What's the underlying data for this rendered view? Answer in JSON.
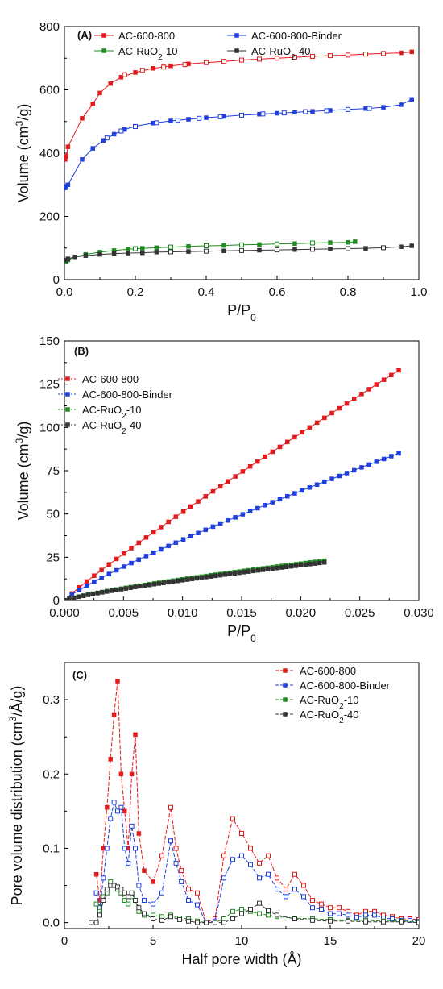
{
  "chart_data": [
    {
      "panel": "(A)",
      "type": "line",
      "xlabel": "P/P",
      "xlabel_sub": "0",
      "ylabel": "Volume (cm",
      "ylabel_sup": "3",
      "ylabel_end": "/g)",
      "xlim": [
        0,
        1.0
      ],
      "ylim": [
        0,
        800
      ],
      "xticks": [
        "0.0",
        "0.2",
        "0.4",
        "0.6",
        "0.8",
        "1.0"
      ],
      "yticks": [
        "0",
        "200",
        "400",
        "600",
        "800"
      ],
      "legend_placement": "top",
      "series": [
        {
          "name": "AC-600-800",
          "name_main": "AC-600-800",
          "name_sub": "",
          "name_end": "",
          "color": "#e31a1c",
          "x": [
            0.002,
            0.005,
            0.01,
            0.05,
            0.08,
            0.1,
            0.13,
            0.16,
            0.2,
            0.25,
            0.3,
            0.35,
            0.4,
            0.45,
            0.5,
            0.55,
            0.6,
            0.65,
            0.7,
            0.75,
            0.8,
            0.85,
            0.9,
            0.95,
            0.98
          ],
          "y": [
            380,
            390,
            420,
            510,
            555,
            590,
            620,
            640,
            655,
            668,
            676,
            682,
            686,
            690,
            694,
            697,
            700,
            703,
            706,
            708,
            710,
            713,
            715,
            717,
            720
          ],
          "x_des": [
            0.17,
            0.22,
            0.28,
            0.34,
            0.4,
            0.45,
            0.5,
            0.55,
            0.6,
            0.65,
            0.7,
            0.75,
            0.8,
            0.85,
            0.9
          ],
          "y_des": [
            648,
            662,
            672,
            680,
            686,
            690,
            694,
            697,
            700,
            703,
            706,
            708,
            710,
            713,
            715
          ]
        },
        {
          "name": "AC-600-800-Binder",
          "name_main": "AC-600-800-Binder",
          "name_sub": "",
          "name_end": "",
          "color": "#1f3fdc",
          "x": [
            0.002,
            0.005,
            0.01,
            0.05,
            0.08,
            0.11,
            0.14,
            0.17,
            0.2,
            0.25,
            0.3,
            0.35,
            0.4,
            0.45,
            0.5,
            0.55,
            0.6,
            0.65,
            0.7,
            0.75,
            0.8,
            0.85,
            0.9,
            0.95,
            0.98
          ],
          "y": [
            290,
            295,
            300,
            380,
            415,
            440,
            460,
            475,
            485,
            495,
            502,
            507,
            512,
            516,
            520,
            523,
            526,
            529,
            532,
            535,
            538,
            541,
            545,
            553,
            570
          ],
          "x_des": [
            0.12,
            0.16,
            0.2,
            0.26,
            0.32,
            0.38,
            0.44,
            0.5,
            0.56,
            0.62,
            0.68,
            0.74,
            0.8,
            0.86
          ],
          "y_des": [
            448,
            470,
            484,
            496,
            504,
            510,
            515,
            520,
            524,
            527,
            531,
            534,
            538,
            541
          ]
        },
        {
          "name": "AC-RuO2-10",
          "name_main": "AC-RuO",
          "name_sub": "2",
          "name_end": "-10",
          "color": "#1e8c1e",
          "x": [
            0.005,
            0.01,
            0.03,
            0.06,
            0.1,
            0.14,
            0.18,
            0.22,
            0.26,
            0.3,
            0.35,
            0.4,
            0.45,
            0.5,
            0.55,
            0.6,
            0.65,
            0.7,
            0.75,
            0.8,
            0.82
          ],
          "y": [
            58,
            62,
            72,
            80,
            87,
            92,
            96,
            99,
            101,
            103,
            105,
            107,
            108,
            110,
            111,
            113,
            114,
            116,
            117,
            118,
            120
          ],
          "x_des": [
            0.2,
            0.3,
            0.4,
            0.5,
            0.6,
            0.7
          ],
          "y_des": [
            98,
            103,
            107,
            110,
            113,
            116
          ]
        },
        {
          "name": "AC-RuO2-40",
          "name_main": "AC-RuO",
          "name_sub": "2",
          "name_end": "-40",
          "color": "#333333",
          "x": [
            0.005,
            0.01,
            0.03,
            0.06,
            0.1,
            0.14,
            0.18,
            0.22,
            0.26,
            0.3,
            0.35,
            0.4,
            0.45,
            0.5,
            0.55,
            0.6,
            0.65,
            0.7,
            0.75,
            0.8,
            0.85,
            0.9,
            0.95,
            0.98
          ],
          "y": [
            62,
            66,
            72,
            76,
            80,
            82,
            84,
            85,
            87,
            88,
            89,
            90,
            91,
            92,
            93,
            94,
            95,
            96,
            97,
            98,
            99,
            101,
            104,
            107
          ],
          "x_des": [
            0.3,
            0.4,
            0.5,
            0.6,
            0.7,
            0.8,
            0.9
          ],
          "y_des": [
            88,
            90,
            92,
            94,
            96,
            98,
            101
          ]
        }
      ]
    },
    {
      "panel": "(B)",
      "type": "line",
      "xlabel": "P/P",
      "xlabel_sub": "0",
      "ylabel": "Volume (cm",
      "ylabel_sup": "3",
      "ylabel_end": "/g)",
      "xlim": [
        0,
        0.03
      ],
      "ylim": [
        0,
        150
      ],
      "xticks": [
        "0.000",
        "0.005",
        "0.010",
        "0.015",
        "0.020",
        "0.025",
        "0.030"
      ],
      "yticks": [
        "0",
        "25",
        "50",
        "75",
        "100",
        "125",
        "150"
      ],
      "legend_placement": "top-left",
      "series": [
        {
          "name": "AC-600-800",
          "name_main": "AC-600-800",
          "name_sub": "",
          "name_end": "",
          "color": "#e31a1c",
          "x_max": 0.0283,
          "y_max": 133,
          "exp": 0.92,
          "n": 45
        },
        {
          "name": "AC-600-800-Binder",
          "name_main": "AC-600-800-Binder",
          "name_sub": "",
          "name_end": "",
          "color": "#1f3fdc",
          "x_max": 0.0283,
          "y_max": 85,
          "exp": 0.85,
          "n": 45
        },
        {
          "name": "AC-RuO2-10",
          "name_main": "AC-RuO",
          "name_sub": "2",
          "name_end": "-10",
          "color": "#1e8c1e",
          "x_max": 0.022,
          "y_max": 23,
          "exp": 0.8,
          "n": 55
        },
        {
          "name": "AC-RuO2-40",
          "name_main": "AC-RuO",
          "name_sub": "2",
          "name_end": "-40",
          "color": "#333333",
          "x_max": 0.022,
          "y_max": 22,
          "exp": 0.8,
          "n": 55
        }
      ]
    },
    {
      "panel": "(C)",
      "type": "line",
      "xlabel": "Half pore width (Å)",
      "ylabel": "Pore volume distribution (cm",
      "ylabel_sup": "3",
      "ylabel_end": "/Å/g)",
      "xlim": [
        0,
        20
      ],
      "ylim": [
        -0.008,
        0.35
      ],
      "xticks": [
        "0",
        "5",
        "10",
        "15",
        "20"
      ],
      "yticks": [
        "0.0",
        "0.1",
        "0.2",
        "0.3"
      ],
      "ytick_values": [
        0.0,
        0.1,
        0.2,
        0.3
      ],
      "legend_placement": "top-right",
      "series": [
        {
          "name": "AC-600-800",
          "name_main": "AC-600-800",
          "name_sub": "",
          "name_end": "",
          "color": "#e31a1c",
          "x": [
            1.8,
            2.0,
            2.2,
            2.4,
            2.6,
            2.8,
            3.0,
            3.2,
            3.4,
            3.6,
            3.8,
            4.0,
            4.2,
            4.5,
            5.0,
            5.5,
            6.0,
            6.3,
            6.6,
            7.0,
            7.5,
            8.0,
            8.5,
            9.0,
            9.5,
            10.0,
            10.5,
            11.0,
            11.5,
            12.0,
            12.5,
            13.0,
            13.5,
            14.0,
            14.5,
            15.0,
            15.5,
            16.0,
            16.5,
            17.0,
            17.5,
            18.0,
            18.5,
            19.0,
            19.5,
            20.0
          ],
          "y": [
            0.065,
            0.03,
            0.1,
            0.155,
            0.22,
            0.28,
            0.325,
            0.2,
            0.15,
            0.1,
            0.2,
            0.253,
            0.12,
            0.07,
            0.055,
            0.09,
            0.155,
            0.1,
            0.07,
            0.045,
            0.04,
            0.0,
            0.005,
            0.09,
            0.14,
            0.12,
            0.1,
            0.08,
            0.09,
            0.06,
            0.045,
            0.065,
            0.05,
            0.03,
            0.025,
            0.02,
            0.02,
            0.015,
            0.01,
            0.015,
            0.015,
            0.01,
            0.008,
            0.005,
            0.005,
            0.004
          ]
        },
        {
          "name": "AC-600-800-Binder",
          "name_main": "AC-600-800-Binder",
          "name_sub": "",
          "name_end": "",
          "color": "#1f3fdc",
          "x": [
            1.8,
            2.0,
            2.2,
            2.4,
            2.6,
            2.8,
            3.0,
            3.2,
            3.4,
            3.6,
            3.8,
            4.0,
            4.2,
            4.5,
            5.0,
            5.5,
            6.0,
            6.3,
            6.6,
            7.0,
            7.5,
            8.0,
            8.5,
            9.0,
            9.5,
            10.0,
            10.5,
            11.0,
            11.5,
            12.0,
            12.5,
            13.0,
            13.5,
            14.0,
            14.5,
            15.0,
            15.5,
            16.0,
            16.5,
            17.0,
            17.5,
            18.0,
            18.5,
            19.0,
            19.5,
            20.0
          ],
          "y": [
            0.04,
            0.02,
            0.06,
            0.1,
            0.14,
            0.162,
            0.15,
            0.155,
            0.1,
            0.08,
            0.13,
            0.1,
            0.05,
            0.03,
            0.025,
            0.04,
            0.11,
            0.08,
            0.055,
            0.03,
            0.024,
            0.0,
            0.002,
            0.06,
            0.085,
            0.09,
            0.078,
            0.06,
            0.065,
            0.045,
            0.035,
            0.045,
            0.035,
            0.02,
            0.018,
            0.012,
            0.012,
            0.01,
            0.007,
            0.01,
            0.01,
            0.006,
            0.005,
            0.003,
            0.003,
            0.002
          ]
        },
        {
          "name": "AC-RuO2-10",
          "name_main": "AC-RuO",
          "name_sub": "2",
          "name_end": "-10",
          "color": "#1e8c1e",
          "x": [
            1.8,
            2.0,
            2.2,
            2.4,
            2.6,
            2.8,
            3.0,
            3.2,
            3.4,
            3.6,
            3.8,
            4.0,
            4.2,
            4.5,
            5.0,
            5.5,
            6.0,
            6.5,
            7.0,
            7.5,
            8.0,
            8.5,
            9.0,
            9.5,
            10.0,
            10.5,
            11.0,
            11.5,
            12.0,
            13.0,
            14.0,
            15.0,
            16.0,
            17.0,
            18.0,
            19.0,
            20.0
          ],
          "y": [
            0.025,
            0.015,
            0.035,
            0.04,
            0.055,
            0.05,
            0.045,
            0.04,
            0.03,
            0.025,
            0.035,
            0.03,
            0.015,
            0.01,
            0.01,
            0.008,
            0.01,
            0.006,
            0.005,
            0.002,
            0.0,
            0.0,
            0.005,
            0.015,
            0.018,
            0.015,
            0.012,
            0.01,
            0.008,
            0.006,
            0.005,
            0.004,
            0.003,
            0.003,
            0.002,
            0.002,
            0.001
          ]
        },
        {
          "name": "AC-RuO2-40",
          "name_main": "AC-RuO",
          "name_sub": "2",
          "name_end": "-40",
          "color": "#333333",
          "x": [
            1.5,
            1.8,
            2.0,
            2.2,
            2.4,
            2.6,
            2.8,
            3.0,
            3.2,
            3.4,
            3.6,
            3.8,
            4.0,
            4.2,
            4.5,
            5.0,
            5.5,
            6.0,
            6.5,
            7.0,
            7.5,
            8.0,
            8.5,
            9.0,
            9.5,
            10.0,
            10.5,
            11.0,
            11.5,
            12.0,
            13.0,
            14.0,
            15.0,
            16.0,
            17.0,
            18.0,
            19.0,
            20.0
          ],
          "y": [
            0.0,
            0.0,
            0.01,
            0.03,
            0.045,
            0.05,
            0.05,
            0.048,
            0.045,
            0.04,
            0.035,
            0.04,
            0.03,
            0.02,
            0.012,
            0.005,
            0.003,
            0.008,
            0.004,
            0.002,
            0.0,
            0.0,
            0.0,
            0.0,
            0.005,
            0.012,
            0.018,
            0.026,
            0.016,
            0.01,
            0.005,
            0.003,
            0.002,
            0.002,
            0.001,
            0.001,
            0.001,
            0.0
          ]
        }
      ]
    }
  ]
}
